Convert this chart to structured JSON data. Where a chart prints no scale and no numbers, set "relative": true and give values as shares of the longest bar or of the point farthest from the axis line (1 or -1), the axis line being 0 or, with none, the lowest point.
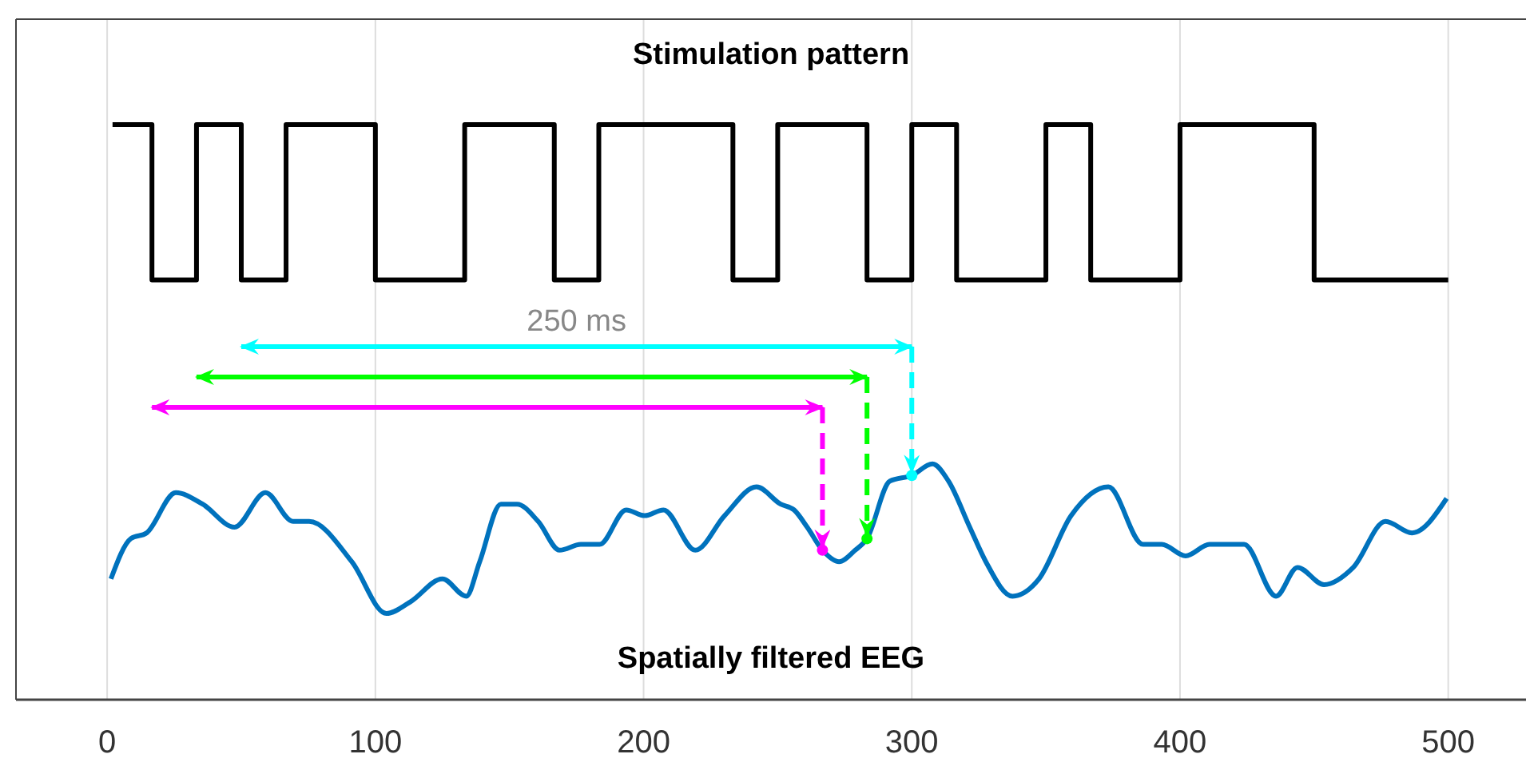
{
  "chart_data": {
    "type": "line",
    "title": "Stimulation pattern",
    "relative": true,
    "xlim": [
      -34,
      529
    ],
    "xticks": [
      0,
      100,
      200,
      300,
      400,
      500
    ],
    "grid": "x",
    "annotations": [
      "250 ms",
      "Spatially filtered EEG"
    ],
    "series": [
      {
        "type": "step",
        "color": "#000000",
        "x": [
          2,
          16.7,
          33.3,
          50,
          66.7,
          100,
          133.3,
          166.7,
          183.3,
          233.3,
          250,
          283.3,
          300,
          316.7,
          350,
          366.7,
          400,
          450,
          500
        ],
        "values": [
          1,
          0.73,
          1,
          0.73,
          1,
          0.73,
          1,
          0.73,
          1,
          0.73,
          1,
          0.73,
          1,
          0.73,
          1,
          0.73,
          1,
          0.73,
          0.73
        ]
      },
      {
        "color": "#0072bd",
        "x": [
          1.4,
          8.8,
          14.7,
          25.6,
          35.6,
          47.5,
          59,
          69.3,
          75.3,
          91.2,
          104.1,
          113,
          125,
          133.9,
          138.9,
          146.8,
          152.8,
          160.7,
          168.7,
          176.6,
          183.6,
          193.5,
          200.4,
          207.4,
          219.3,
          230.2,
          242.1,
          251.1,
          256.1,
          261,
          266.7,
          272.9,
          278.9,
          283.3,
          291.8,
          300,
          307.7,
          313.7,
          321.6,
          327.6,
          337.5,
          347.4,
          359.4,
          373.3,
          386.2,
          393.2,
          402.1,
          411,
          423.9,
          435.8,
          443.8,
          453.7,
          464.6,
          476.6,
          486.5,
          499.4
        ],
        "values": [
          0.21,
          0.28,
          0.29,
          0.36,
          0.34,
          0.3,
          0.36,
          0.31,
          0.31,
          0.24,
          0.15,
          0.17,
          0.21,
          0.18,
          0.24,
          0.34,
          0.34,
          0.31,
          0.26,
          0.27,
          0.27,
          0.33,
          0.32,
          0.33,
          0.26,
          0.32,
          0.37,
          0.34,
          0.33,
          0.3,
          0.26,
          0.24,
          0.26,
          0.28,
          0.38,
          0.39,
          0.41,
          0.38,
          0.3,
          0.24,
          0.18,
          0.21,
          0.32,
          0.37,
          0.27,
          0.27,
          0.25,
          0.27,
          0.27,
          0.18,
          0.23,
          0.2,
          0.23,
          0.31,
          0.29,
          0.35
        ]
      }
    ]
  }
}
